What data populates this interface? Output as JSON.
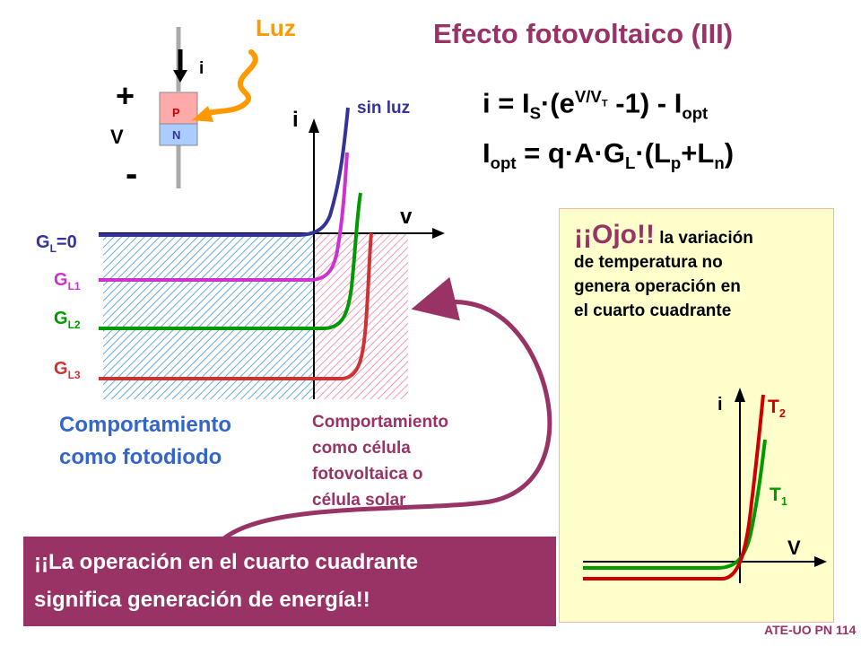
{
  "slide": {
    "title": "Efecto fotovoltaico (III)",
    "footer": "ATE-UO PN 114"
  },
  "device": {
    "light_label": "Luz",
    "current_label": "i",
    "plus": "+",
    "minus": "-",
    "voltage_label": "V",
    "p_label": "P",
    "n_label": "N"
  },
  "equations": {
    "eq1": {
      "lhs": "i = I",
      "s_sub": "S",
      "mid": "·(e",
      "exp": "V/V",
      "exp_sub": "T",
      "rest": " -1) - I",
      "opt_sub": "opt"
    },
    "eq2": {
      "lhs": "I",
      "opt_sub": "opt",
      "mid": " = q·A·G",
      "l_sub": "L",
      "rest": "·(L",
      "p_sub": "p",
      "plus": "+L",
      "n_sub": "n",
      "end": ")"
    }
  },
  "main_plot": {
    "y_axis_label": "i",
    "x_axis_label": "v",
    "sin_luz_label": "sin luz",
    "curves": [
      {
        "g": "G",
        "sub": "L",
        "suffix": "=0",
        "color": "#333399"
      },
      {
        "g": "G",
        "sub": "L1",
        "suffix": "",
        "color": "#cc33cc"
      },
      {
        "g": "G",
        "sub": "L2",
        "suffix": "",
        "color": "#009900"
      },
      {
        "g": "G",
        "sub": "L3",
        "suffix": "",
        "color": "#cc3333"
      }
    ],
    "photodiode_text": [
      "Comportamiento",
      "como fotodiodo"
    ],
    "solar_text": [
      "Comportamiento",
      "como célula",
      "fotovoltaica o",
      "célula solar"
    ]
  },
  "note": {
    "exclaim": "¡¡Ojo!!",
    "lines": [
      "la variación",
      "de temperatura no",
      "genera operación en",
      "el cuarto cuadrante"
    ]
  },
  "temp_plot": {
    "y_axis_label": "i",
    "x_axis_label": "V",
    "t2": {
      "t": "T",
      "sub": "2",
      "color": "#cc0000"
    },
    "t1": {
      "t": "T",
      "sub": "1",
      "color": "#009900"
    }
  },
  "banner": {
    "lines": [
      "¡¡La operación en el cuarto cuadrante",
      "significa generación de energía!!"
    ]
  }
}
